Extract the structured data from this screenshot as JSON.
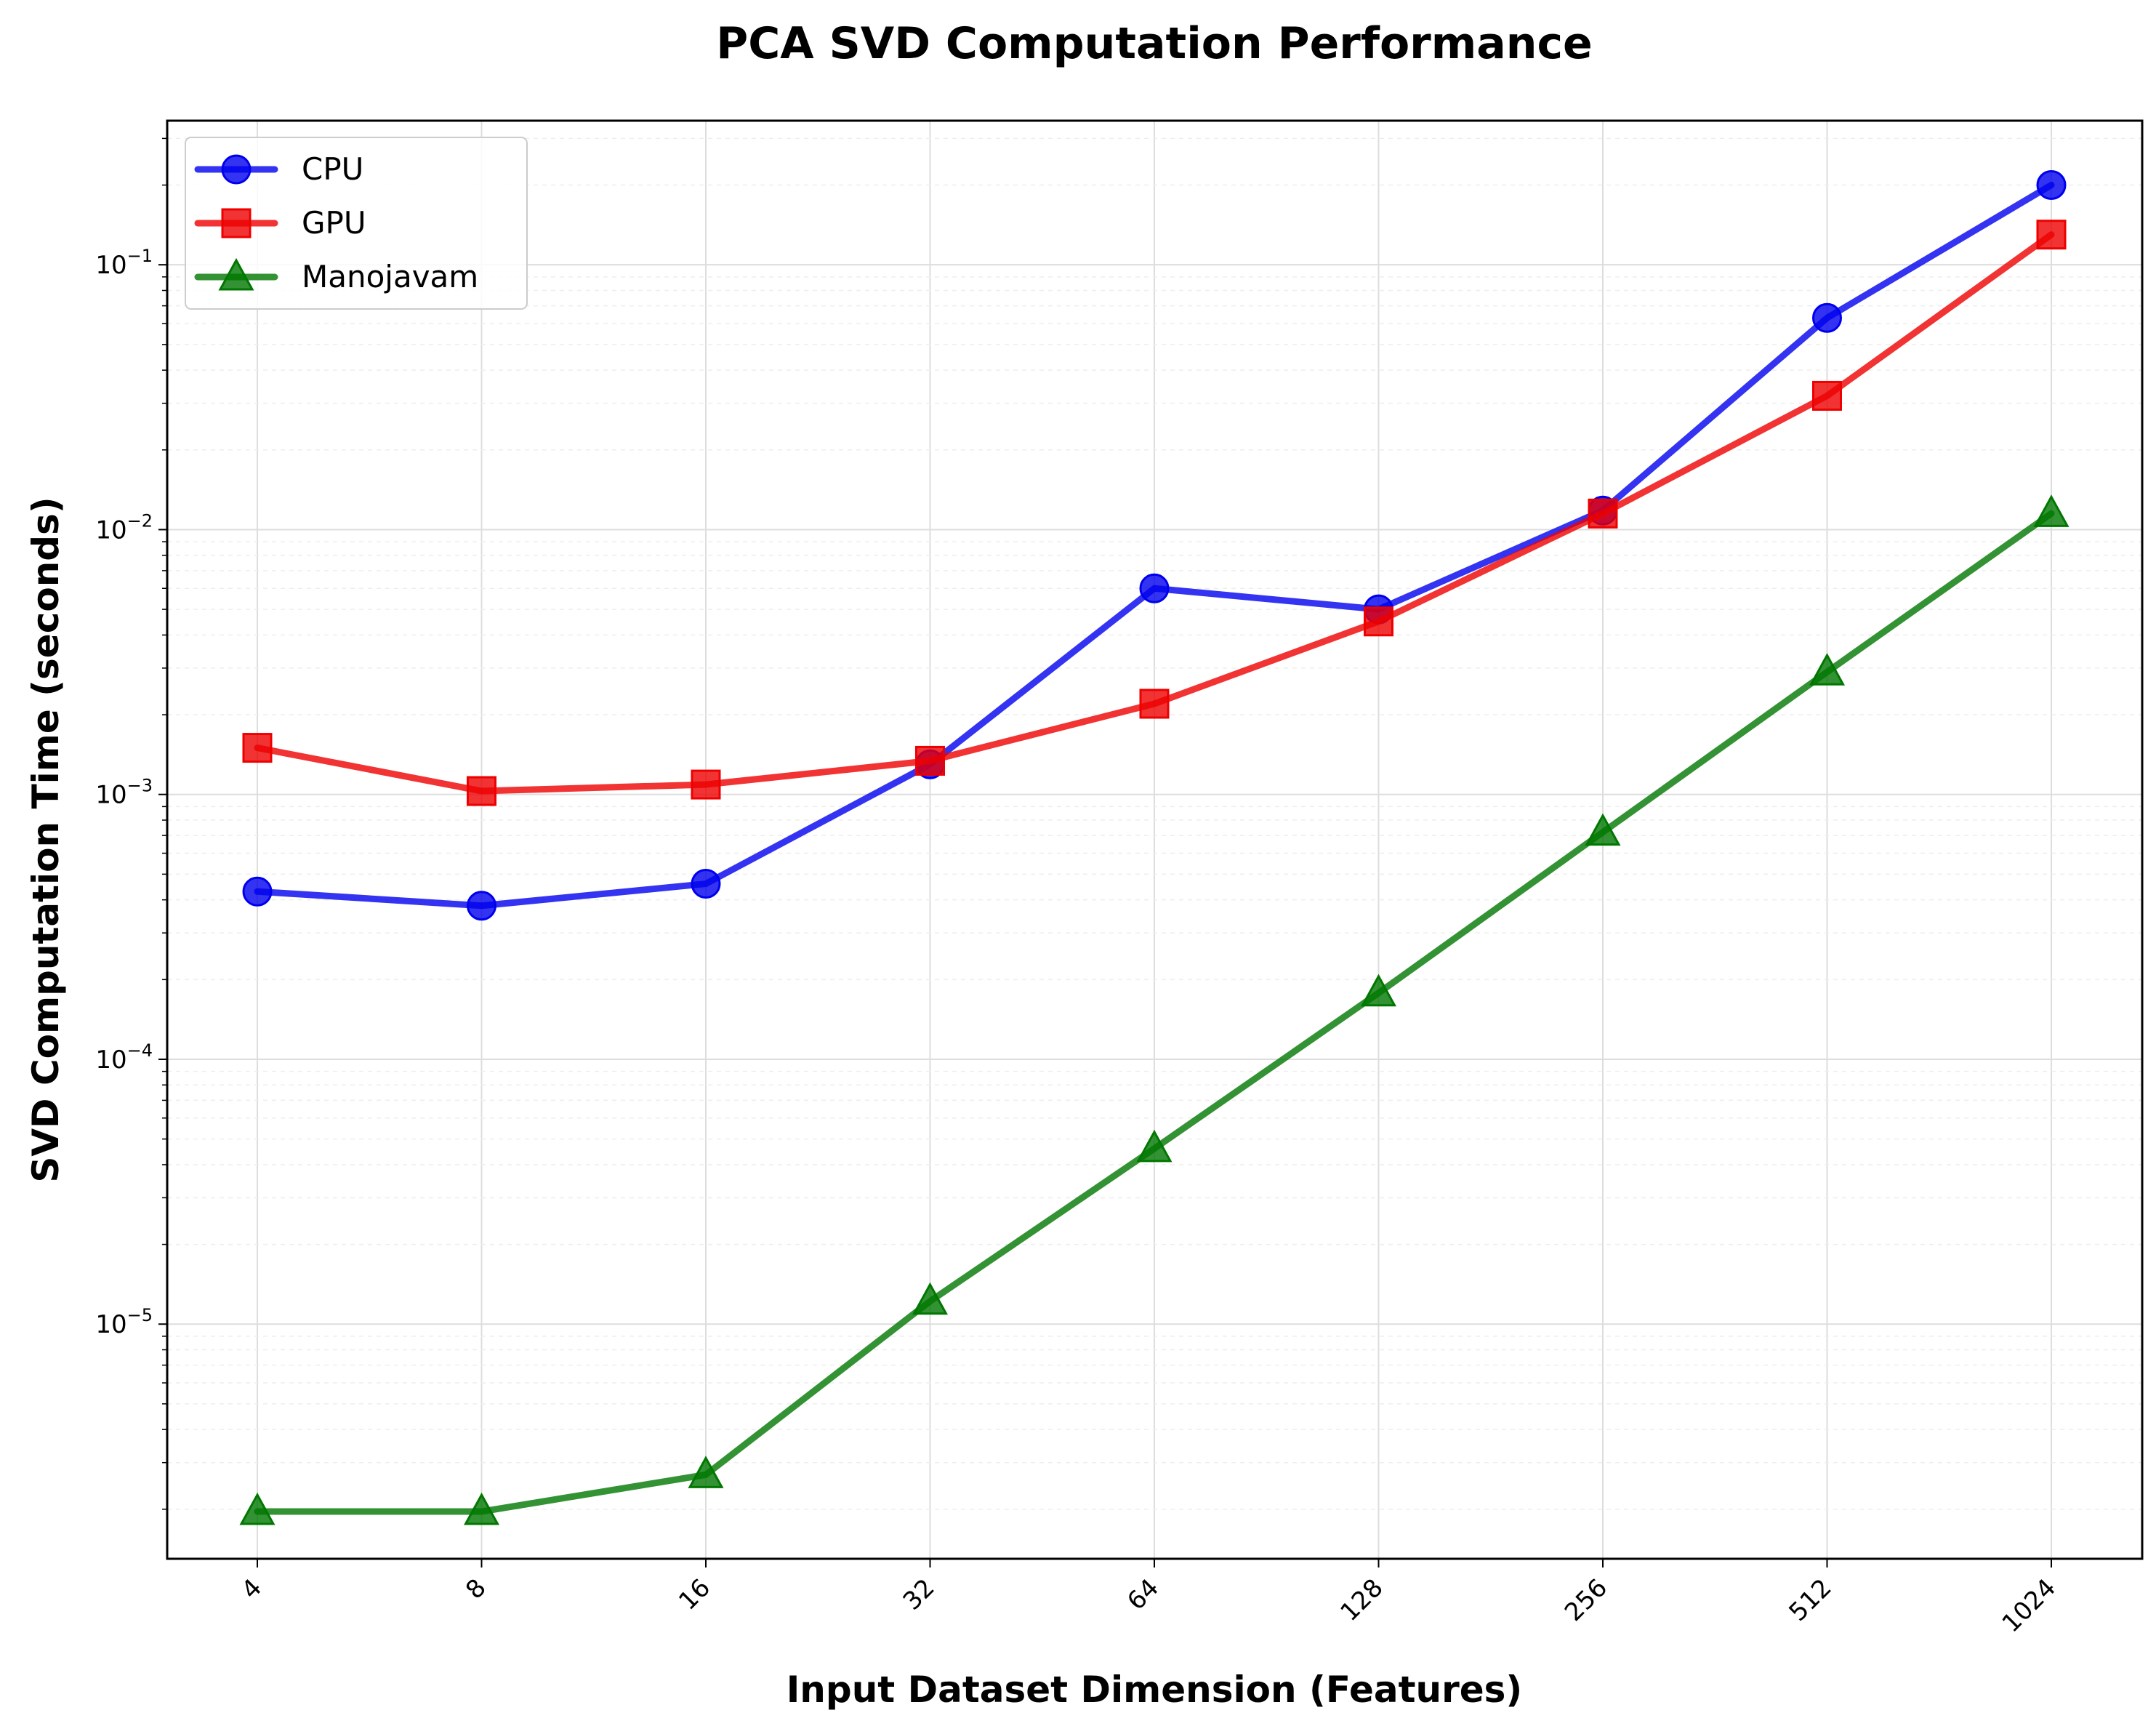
{
  "chart_data": {
    "type": "line",
    "title": "PCA SVD Computation Performance",
    "xlabel": "Input Dataset Dimension (Features)",
    "ylabel": "SVD Computation Time (seconds)",
    "x": [
      4,
      8,
      16,
      32,
      64,
      128,
      256,
      512,
      1024
    ],
    "x_tick_labels": [
      "4",
      "8",
      "16",
      "32",
      "64",
      "128",
      "256",
      "512",
      "1024"
    ],
    "x_scale": "log2",
    "y_scale": "log10",
    "ylim": [
      1.3e-06,
      0.35
    ],
    "y_major_ticks": [
      {
        "base": "10",
        "exp": "−5",
        "value": 1e-05
      },
      {
        "base": "10",
        "exp": "−4",
        "value": 0.0001
      },
      {
        "base": "10",
        "exp": "−3",
        "value": 0.001
      },
      {
        "base": "10",
        "exp": "−2",
        "value": 0.01
      },
      {
        "base": "10",
        "exp": "−1",
        "value": 0.1
      }
    ],
    "grid": true,
    "legend_position": "upper-left",
    "series": [
      {
        "name": "CPU",
        "color": "#0000ee",
        "marker": "circle",
        "values": [
          0.00043,
          0.00038,
          0.00046,
          0.0013,
          0.006,
          0.005,
          0.0118,
          0.063,
          0.2
        ]
      },
      {
        "name": "GPU",
        "color": "#ee0000",
        "marker": "square",
        "values": [
          0.0015,
          0.00103,
          0.00109,
          0.00134,
          0.0022,
          0.0045,
          0.0115,
          0.032,
          0.13
        ]
      },
      {
        "name": "Manojavam",
        "color": "#007700",
        "marker": "triangle",
        "values": [
          1.96e-06,
          1.96e-06,
          2.7e-06,
          1.22e-05,
          4.6e-05,
          0.000178,
          0.00072,
          0.0029,
          0.0115
        ]
      }
    ]
  }
}
